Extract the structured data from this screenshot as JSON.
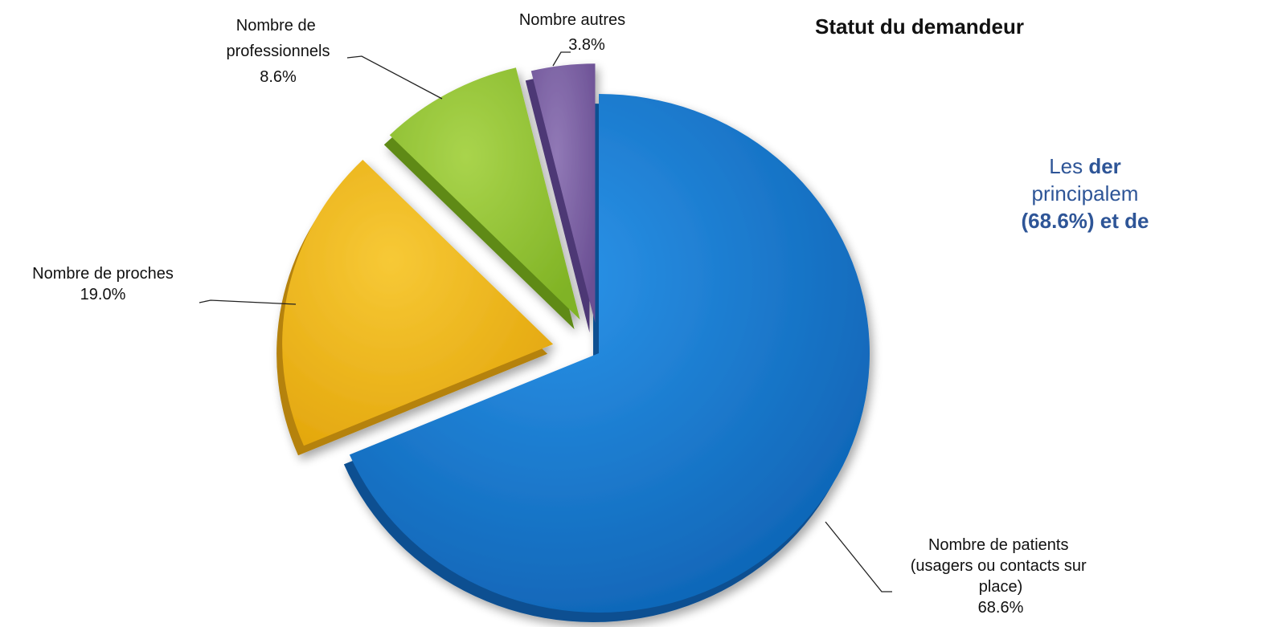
{
  "chart_data": {
    "type": "pie",
    "title": "Statut du demandeur",
    "exploded": true,
    "slices": [
      {
        "label": "Nombre de patients (usagers ou contacts sur place)",
        "value": 68.6,
        "value_label": "68.6%",
        "color": "#1a7fd4"
      },
      {
        "label": "Nombre de proches",
        "value": 19.0,
        "value_label": "19.0%",
        "color": "#f2b91a"
      },
      {
        "label": "Nombre de professionnels",
        "value": 8.6,
        "value_label": "8.6%",
        "color": "#99c93a"
      },
      {
        "label": "Nombre autres",
        "value": 3.8,
        "value_label": "3.8%",
        "color": "#8063a4"
      }
    ]
  },
  "annotation": {
    "line1_prefix": "Les ",
    "line1_bold": "der",
    "line2": "principalem",
    "line3_bold": "(68.6%) et de"
  }
}
